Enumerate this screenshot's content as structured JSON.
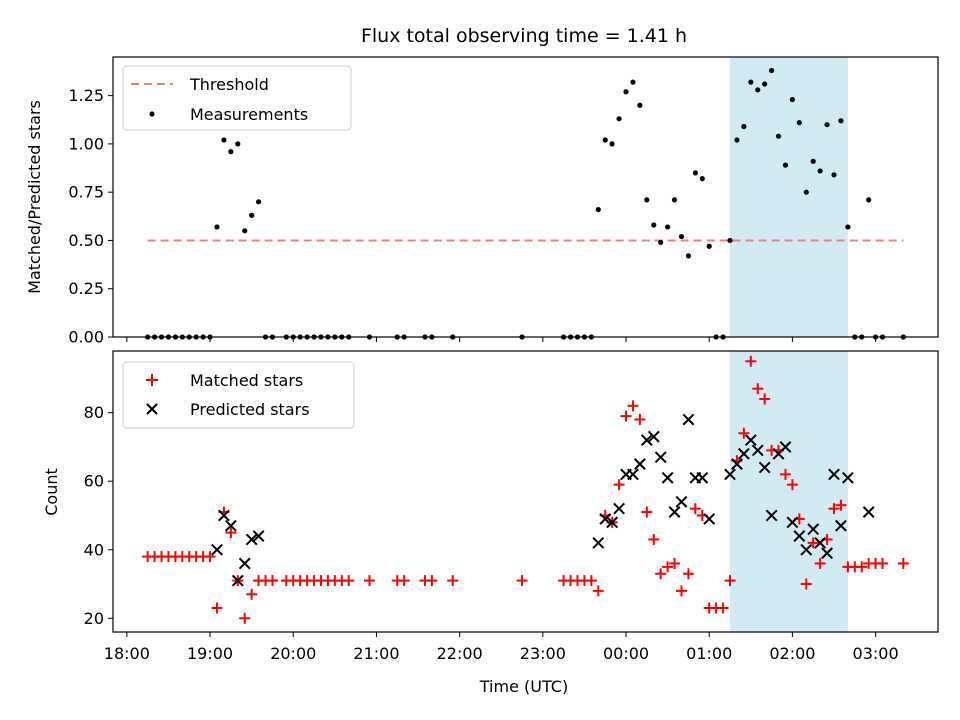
{
  "chart_data": [
    {
      "type": "scatter",
      "title": "Flux total observing time = 1.41 h",
      "ylabel": "Matched/Predicted stars",
      "xlabel": "",
      "ylim": [
        0,
        1.45
      ],
      "yticks": [
        "0.00",
        "0.25",
        "0.50",
        "0.75",
        "1.00",
        "1.25"
      ],
      "threshold": {
        "name": "Threshold",
        "value": 0.5,
        "x": [
          "18:15",
          "03:20"
        ],
        "color": "#f08080"
      },
      "shaded_span": {
        "x": [
          "01:15",
          "02:40"
        ],
        "color": "#add8e6"
      },
      "legend": {
        "position": "top-left",
        "entries": [
          "Threshold",
          "Measurements"
        ]
      },
      "series": [
        {
          "name": "Measurements",
          "color": "#000000",
          "points": [
            [
              "18:15",
              0
            ],
            [
              "18:20",
              0
            ],
            [
              "18:25",
              0
            ],
            [
              "18:30",
              0
            ],
            [
              "18:35",
              0
            ],
            [
              "18:40",
              0
            ],
            [
              "18:45",
              0
            ],
            [
              "18:50",
              0
            ],
            [
              "18:55",
              0
            ],
            [
              "19:00",
              0
            ],
            [
              "19:05",
              0.57
            ],
            [
              "19:10",
              1.02
            ],
            [
              "19:15",
              0.96
            ],
            [
              "19:20",
              1.0
            ],
            [
              "19:25",
              0.55
            ],
            [
              "19:30",
              0.63
            ],
            [
              "19:35",
              0.7
            ],
            [
              "19:40",
              0
            ],
            [
              "19:45",
              0
            ],
            [
              "19:55",
              0
            ],
            [
              "20:00",
              0
            ],
            [
              "20:05",
              0
            ],
            [
              "20:10",
              0
            ],
            [
              "20:15",
              0
            ],
            [
              "20:20",
              0
            ],
            [
              "20:25",
              0
            ],
            [
              "20:30",
              0
            ],
            [
              "20:35",
              0
            ],
            [
              "20:40",
              0
            ],
            [
              "20:55",
              0
            ],
            [
              "21:15",
              0
            ],
            [
              "21:20",
              0
            ],
            [
              "21:35",
              0
            ],
            [
              "21:40",
              0
            ],
            [
              "21:55",
              0
            ],
            [
              "22:45",
              0
            ],
            [
              "23:15",
              0
            ],
            [
              "23:20",
              0
            ],
            [
              "23:25",
              0
            ],
            [
              "23:30",
              0
            ],
            [
              "23:35",
              0
            ],
            [
              "23:40",
              0.66
            ],
            [
              "23:45",
              1.02
            ],
            [
              "23:50",
              1.0
            ],
            [
              "23:55",
              1.13
            ],
            [
              "00:00",
              1.27
            ],
            [
              "00:05",
              1.32
            ],
            [
              "00:10",
              1.2
            ],
            [
              "00:15",
              0.71
            ],
            [
              "00:20",
              0.58
            ],
            [
              "00:25",
              0.49
            ],
            [
              "00:30",
              0.57
            ],
            [
              "00:35",
              0.71
            ],
            [
              "00:40",
              0.52
            ],
            [
              "00:45",
              0.42
            ],
            [
              "00:50",
              0.85
            ],
            [
              "00:55",
              0.82
            ],
            [
              "01:00",
              0.47
            ],
            [
              "01:05",
              0
            ],
            [
              "01:10",
              0
            ],
            [
              "01:15",
              0.5
            ],
            [
              "01:20",
              1.02
            ],
            [
              "01:25",
              1.09
            ],
            [
              "01:30",
              1.32
            ],
            [
              "01:35",
              1.28
            ],
            [
              "01:40",
              1.31
            ],
            [
              "01:45",
              1.38
            ],
            [
              "01:50",
              1.04
            ],
            [
              "01:55",
              0.89
            ],
            [
              "02:00",
              1.23
            ],
            [
              "02:05",
              1.11
            ],
            [
              "02:10",
              0.75
            ],
            [
              "02:15",
              0.91
            ],
            [
              "02:20",
              0.86
            ],
            [
              "02:25",
              1.1
            ],
            [
              "02:30",
              0.84
            ],
            [
              "02:35",
              1.12
            ],
            [
              "02:40",
              0.57
            ],
            [
              "02:45",
              0
            ],
            [
              "02:50",
              0
            ],
            [
              "02:55",
              0.71
            ],
            [
              "03:00",
              0
            ],
            [
              "03:05",
              0
            ],
            [
              "03:20",
              0
            ]
          ]
        }
      ]
    },
    {
      "type": "scatter",
      "title": "",
      "ylabel": "Count",
      "xlabel": "Time (UTC)",
      "ylim": [
        16,
        98
      ],
      "yticks": [
        "20",
        "40",
        "60",
        "80"
      ],
      "xticks": [
        "18:00",
        "19:00",
        "20:00",
        "21:00",
        "22:00",
        "23:00",
        "00:00",
        "01:00",
        "02:00",
        "03:00"
      ],
      "xrange": [
        "17:50",
        "03:45"
      ],
      "shaded_span": {
        "x": [
          "01:15",
          "02:40"
        ],
        "color": "#add8e6"
      },
      "legend": {
        "position": "top-left",
        "entries": [
          "Matched stars",
          "Predicted stars"
        ]
      },
      "series": [
        {
          "name": "Matched stars",
          "marker": "plus",
          "color": "#ff0000",
          "points": [
            [
              "18:15",
              38
            ],
            [
              "18:20",
              38
            ],
            [
              "18:25",
              38
            ],
            [
              "18:30",
              38
            ],
            [
              "18:35",
              38
            ],
            [
              "18:40",
              38
            ],
            [
              "18:45",
              38
            ],
            [
              "18:50",
              38
            ],
            [
              "18:55",
              38
            ],
            [
              "19:00",
              38
            ],
            [
              "19:05",
              23
            ],
            [
              "19:10",
              51
            ],
            [
              "19:15",
              45
            ],
            [
              "19:20",
              31
            ],
            [
              "19:25",
              20
            ],
            [
              "19:30",
              27
            ],
            [
              "19:35",
              31
            ],
            [
              "19:40",
              31
            ],
            [
              "19:45",
              31
            ],
            [
              "19:55",
              31
            ],
            [
              "20:00",
              31
            ],
            [
              "20:05",
              31
            ],
            [
              "20:10",
              31
            ],
            [
              "20:15",
              31
            ],
            [
              "20:20",
              31
            ],
            [
              "20:25",
              31
            ],
            [
              "20:30",
              31
            ],
            [
              "20:35",
              31
            ],
            [
              "20:40",
              31
            ],
            [
              "20:55",
              31
            ],
            [
              "21:15",
              31
            ],
            [
              "21:20",
              31
            ],
            [
              "21:35",
              31
            ],
            [
              "21:40",
              31
            ],
            [
              "21:55",
              31
            ],
            [
              "22:45",
              31
            ],
            [
              "23:15",
              31
            ],
            [
              "23:20",
              31
            ],
            [
              "23:25",
              31
            ],
            [
              "23:30",
              31
            ],
            [
              "23:35",
              31
            ],
            [
              "23:40",
              28
            ],
            [
              "23:45",
              50
            ],
            [
              "23:50",
              48
            ],
            [
              "23:55",
              59
            ],
            [
              "00:00",
              79
            ],
            [
              "00:05",
              82
            ],
            [
              "00:10",
              78
            ],
            [
              "00:15",
              51
            ],
            [
              "00:20",
              43
            ],
            [
              "00:25",
              33
            ],
            [
              "00:30",
              35
            ],
            [
              "00:35",
              36
            ],
            [
              "00:40",
              28
            ],
            [
              "00:45",
              33
            ],
            [
              "00:50",
              52
            ],
            [
              "00:55",
              50
            ],
            [
              "01:00",
              23
            ],
            [
              "01:05",
              23
            ],
            [
              "01:10",
              23
            ],
            [
              "01:15",
              31
            ],
            [
              "01:20",
              66
            ],
            [
              "01:25",
              74
            ],
            [
              "01:30",
              95
            ],
            [
              "01:35",
              87
            ],
            [
              "01:40",
              84
            ],
            [
              "01:45",
              69
            ],
            [
              "01:50",
              69
            ],
            [
              "01:55",
              62
            ],
            [
              "02:00",
              59
            ],
            [
              "02:05",
              49
            ],
            [
              "02:10",
              30
            ],
            [
              "02:15",
              42
            ],
            [
              "02:20",
              36
            ],
            [
              "02:25",
              43
            ],
            [
              "02:30",
              52
            ],
            [
              "02:35",
              53
            ],
            [
              "02:40",
              35
            ],
            [
              "02:45",
              35
            ],
            [
              "02:50",
              35
            ],
            [
              "02:55",
              36
            ],
            [
              "03:00",
              36
            ],
            [
              "03:05",
              36
            ],
            [
              "03:20",
              36
            ]
          ]
        },
        {
          "name": "Predicted stars",
          "marker": "x",
          "color": "#000000",
          "points": [
            [
              "19:05",
              40
            ],
            [
              "19:10",
              50
            ],
            [
              "19:15",
              47
            ],
            [
              "19:20",
              31
            ],
            [
              "19:25",
              36
            ],
            [
              "19:30",
              43
            ],
            [
              "19:35",
              44
            ],
            [
              "23:40",
              42
            ],
            [
              "23:45",
              49
            ],
            [
              "23:50",
              48
            ],
            [
              "23:55",
              52
            ],
            [
              "00:00",
              62
            ],
            [
              "00:05",
              62
            ],
            [
              "00:10",
              65
            ],
            [
              "00:15",
              72
            ],
            [
              "00:20",
              73
            ],
            [
              "00:25",
              67
            ],
            [
              "00:30",
              61
            ],
            [
              "00:35",
              51
            ],
            [
              "00:40",
              54
            ],
            [
              "00:45",
              78
            ],
            [
              "00:50",
              61
            ],
            [
              "00:55",
              61
            ],
            [
              "01:00",
              49
            ],
            [
              "01:15",
              62
            ],
            [
              "01:20",
              65
            ],
            [
              "01:25",
              68
            ],
            [
              "01:30",
              72
            ],
            [
              "01:35",
              69
            ],
            [
              "01:40",
              64
            ],
            [
              "01:45",
              50
            ],
            [
              "01:50",
              68
            ],
            [
              "01:55",
              70
            ],
            [
              "02:00",
              48
            ],
            [
              "02:05",
              44
            ],
            [
              "02:10",
              40
            ],
            [
              "02:15",
              46
            ],
            [
              "02:20",
              42
            ],
            [
              "02:25",
              39
            ],
            [
              "02:30",
              62
            ],
            [
              "02:35",
              47
            ],
            [
              "02:40",
              61
            ],
            [
              "02:55",
              51
            ]
          ]
        }
      ]
    }
  ]
}
